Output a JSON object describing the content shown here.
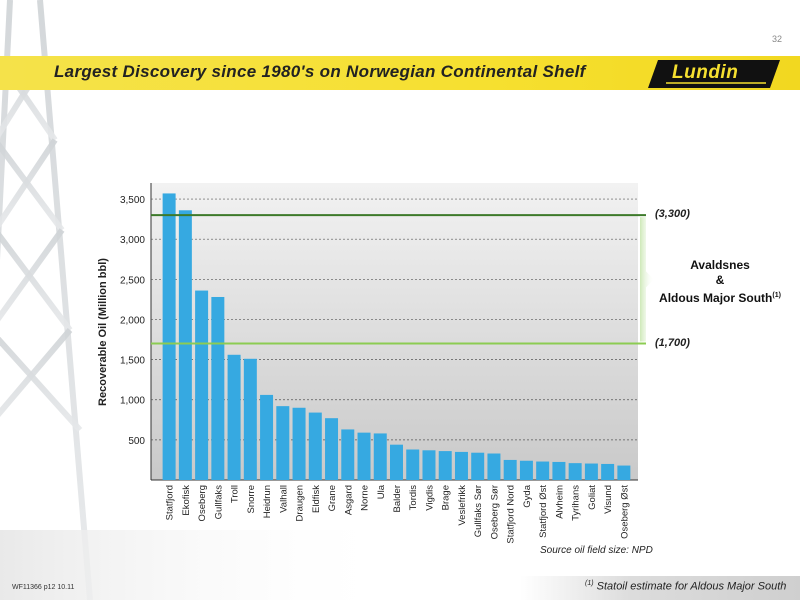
{
  "page_number": "32",
  "banner": {
    "title": "Largest Discovery since 1980's on Norwegian Continental Shelf"
  },
  "logo": {
    "text": "Lundin",
    "colors": {
      "bg": "#111111",
      "fg": "#f6e030"
    }
  },
  "colors": {
    "bar": "#36a9e1",
    "line_high": "#3d7a2a",
    "line_low": "#8ccc52",
    "plot_bg_top": "#f2f2f2",
    "plot_bg_bottom": "#c9c9c9",
    "banner": "#f6e030"
  },
  "chart_data": {
    "type": "bar",
    "categories": [
      "Statfjord",
      "Ekofisk",
      "Oseberg",
      "Gullfaks",
      "Troll",
      "Snorre",
      "Heidrun",
      "Valhall",
      "Draugen",
      "Eldfisk",
      "Grane",
      "Asgard",
      "Norne",
      "Ula",
      "Balder",
      "Tordis",
      "Vigdis",
      "Brage",
      "Veslefrikk",
      "Gullfaks Sør",
      "Oseberg Sør",
      "Statfjord Nord",
      "Gyda",
      "Statfjord Øst",
      "Alvheim",
      "Tyrihans",
      "Goliat",
      "Visund",
      "Oseberg Øst"
    ],
    "values": [
      3570,
      3360,
      2360,
      2280,
      1560,
      1510,
      1060,
      920,
      900,
      840,
      770,
      630,
      590,
      580,
      440,
      380,
      370,
      360,
      350,
      340,
      330,
      250,
      240,
      230,
      225,
      210,
      205,
      200,
      180
    ],
    "ylabel": "Recoverable Oil  (Million bbl)",
    "yticks": [
      500,
      1000,
      1500,
      2000,
      2500,
      3000,
      3500
    ],
    "ylim": [
      0,
      3700
    ],
    "grid": true,
    "reference_lines": [
      {
        "value": 3300,
        "label": "(3,300)"
      },
      {
        "value": 1700,
        "label": "(1,700)"
      }
    ],
    "annotation": {
      "line1": "Avaldsnes",
      "line2": "&",
      "line3": "Aldous Major South",
      "sup": "(1)"
    },
    "source": "Source oil field size: NPD"
  },
  "footer": {
    "code": "WF11366 p12 10.11",
    "note_sup": "(1)",
    "note": "Statoil estimate for Aldous Major South"
  }
}
